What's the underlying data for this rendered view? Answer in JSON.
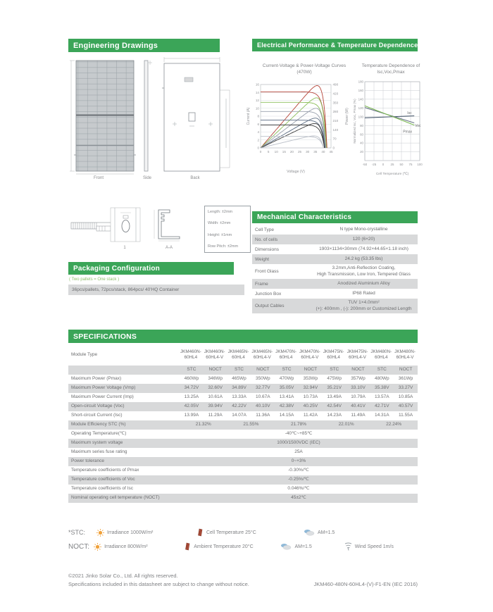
{
  "sections": {
    "engineering": {
      "title": "Engineering Drawings",
      "views": [
        "Front",
        "Side",
        "Back"
      ],
      "section_labels": [
        "1",
        "A-A"
      ],
      "tolerances": [
        "Length: ±2mm",
        "Width: ±2mm",
        "Height: ±1mm",
        "Row Pitch: ±2mm"
      ]
    },
    "electrical": {
      "title": "Electrical Performance & Temperature Dependence"
    },
    "packaging": {
      "title": "Packaging Configuration",
      "note": "( Two pallets = One stack )",
      "detail": "36pcs/pallets, 72pcs/stack, 864pcs/ 40'HQ Container"
    },
    "mechanical": {
      "title": "Mechanical Characteristics",
      "rows": [
        {
          "label": "Cell Type",
          "lines": [
            "N type Mono-crystalline"
          ],
          "shade": false
        },
        {
          "label": "No. of cells",
          "lines": [
            "120 (6×20)"
          ],
          "shade": true
        },
        {
          "label": "Dimensions",
          "lines": [
            "1903×1134×30mm (74.92×44.65×1.18 inch)"
          ],
          "shade": false
        },
        {
          "label": "Weight",
          "lines": [
            "24.2 kg (53.35 lbs)"
          ],
          "shade": true
        },
        {
          "label": "Front Glass",
          "lines": [
            "3.2mm,Anti-Reflection Coating,",
            "High Transmission, Low Iron, Tempered Glass"
          ],
          "shade": false
        },
        {
          "label": "Frame",
          "lines": [
            "Anodized Aluminium Alloy"
          ],
          "shade": true
        },
        {
          "label": "Junction Box",
          "lines": [
            "IP68 Rated"
          ],
          "shade": false
        },
        {
          "label": "Output Cables",
          "lines": [
            "TUV 1×4.0mm²",
            "(+): 400mm , (-): 200mm or Customized Length"
          ],
          "shade": true
        }
      ]
    },
    "specifications": {
      "title": "SPECIFICATIONS",
      "module_type_label": "Module Type",
      "modules": [
        [
          "JKM460N-60HL4",
          "JKM460N-60HL4-V"
        ],
        [
          "JKM465N-60HL4",
          "JKM465N-60HL4-V"
        ],
        [
          "JKM470N-60HL4",
          "JKM470N-60HL4-V"
        ],
        [
          "JKM475N-60HL4",
          "JKM475N-60HL4-V"
        ],
        [
          "JKM480N-60HL4",
          "JKM480N-60HL4-V"
        ]
      ],
      "subheaders": [
        "STC",
        "NOCT"
      ],
      "rows": [
        {
          "label": "Maximum Power (Pmax)",
          "type": "pair",
          "shade": false,
          "values": [
            "460Wp",
            "346Wp",
            "465Wp",
            "350Wp",
            "470Wp",
            "353Wp",
            "475Wp",
            "357Wp",
            "480Wp",
            "361Wp"
          ]
        },
        {
          "label": "Maximum Power Voltage (Vmp)",
          "type": "pair",
          "shade": true,
          "values": [
            "34.72V",
            "32.60V",
            "34.89V",
            "32.77V",
            "35.05V",
            "32.94V",
            "35.21V",
            "33.10V",
            "35.38V",
            "33.27V"
          ]
        },
        {
          "label": "Maximum Power Current (Imp)",
          "type": "pair",
          "shade": false,
          "values": [
            "13.25A",
            "10.61A",
            "13.33A",
            "10.67A",
            "13.41A",
            "10.73A",
            "13.49A",
            "10.79A",
            "13.57A",
            "10.85A"
          ]
        },
        {
          "label": "Open-circuit Voltage (Voc)",
          "type": "pair",
          "shade": true,
          "values": [
            "42.05V",
            "39.94V",
            "42.22V",
            "40.10V",
            "42.38V",
            "40.25V",
            "42.54V",
            "40.41V",
            "42.71V",
            "40.57V"
          ]
        },
        {
          "label": "Short-circuit Current (Isc)",
          "type": "pair",
          "shade": false,
          "values": [
            "13.99A",
            "11.29A",
            "14.07A",
            "11.36A",
            "14.15A",
            "11.42A",
            "14.23A",
            "11.49A",
            "14.31A",
            "11.55A"
          ]
        },
        {
          "label": "Module Efficiency STC (%)",
          "type": "percol",
          "shade": true,
          "values": [
            "21.32%",
            "21.55%",
            "21.78%",
            "22.01%",
            "22.24%"
          ]
        },
        {
          "label": "Operating Temperature(℃)",
          "type": "span",
          "shade": false,
          "value": "-40℃~+85℃"
        },
        {
          "label": "Maximum system voltage",
          "type": "span",
          "shade": true,
          "value": "1000/1500VDC (IEC)"
        },
        {
          "label": "Maximum series fuse rating",
          "type": "span",
          "shade": false,
          "value": "25A"
        },
        {
          "label": "Power tolerance",
          "type": "span",
          "shade": true,
          "value": "0~+3%"
        },
        {
          "label": "Temperature coefficients of Pmax",
          "type": "span",
          "shade": false,
          "value": "-0.30%/℃"
        },
        {
          "label": "Temperature coefficients of Voc",
          "type": "span",
          "shade": true,
          "value": "-0.25%/℃"
        },
        {
          "label": "Temperature coefficients of Isc",
          "type": "span",
          "shade": false,
          "value": "0.046%/℃"
        },
        {
          "label": "Nominal operating cell temperature  (NOCT)",
          "type": "span",
          "shade": true,
          "value": "45±2℃"
        }
      ]
    },
    "legend": {
      "rows": [
        {
          "tag": "*STC:",
          "items": [
            {
              "icon": "sun-icon",
              "text": "Irradiance 1000W/m²"
            },
            {
              "icon": "thermometer-icon",
              "text": "Cell Temperature 25°C"
            },
            {
              "icon": "cloud-icon",
              "text": "AM=1.5"
            }
          ]
        },
        {
          "tag": "NOCT:",
          "items": [
            {
              "icon": "sun-icon",
              "text": "Irradiance 800W/m²"
            },
            {
              "icon": "thermometer-icon",
              "text": "Ambient Temperature 20°C"
            },
            {
              "icon": "cloud-icon",
              "text": "AM=1.5"
            },
            {
              "icon": "wind-icon",
              "text": "Wind Speed 1m/s"
            }
          ]
        }
      ]
    },
    "footer": {
      "line1": "©2021 Jinko Solar Co., Ltd. All rights reserved.",
      "line2": "Specifications included in this datasheet are subject to change without notice.",
      "code": "JKM460-480N-60HL4-(V)-F1-EN (IEC 2016)"
    }
  },
  "colors": {
    "accent_green": "#3ba558",
    "stripe_gray": "#d8d9da"
  },
  "chart_data": [
    {
      "type": "line",
      "title": "Current-Voltage & Power-Voltage Curves (470W)",
      "xlabel": "Voltage (V)",
      "ylabel_left": "Current (A)",
      "ylabel_right": "Power (W)",
      "xlim": [
        0,
        45
      ],
      "xticks": [
        0,
        5,
        10,
        15,
        20,
        25,
        30,
        35,
        40,
        45
      ],
      "ylim_left": [
        0,
        16
      ],
      "yticks_left": [
        0,
        2,
        4,
        6,
        8,
        10,
        12,
        14,
        16
      ],
      "ylim_right": [
        0,
        490
      ],
      "yticks_right": [
        0,
        70,
        140,
        210,
        280,
        350,
        420,
        490
      ],
      "grid": "horizontal",
      "iv_curves": [
        {
          "isc": 14.15,
          "voc": 42.4,
          "color": "#b6453a"
        },
        {
          "isc": 11.5,
          "voc": 42.0,
          "color": "#8cbf5a"
        },
        {
          "isc": 9.2,
          "voc": 41.6,
          "color": "#9aa0ad"
        },
        {
          "isc": 7.0,
          "voc": 41.2,
          "color": "#5b6b82"
        },
        {
          "isc": 5.8,
          "voc": 40.8,
          "color": "#3a3a3a"
        },
        {
          "isc": 2.9,
          "voc": 40.2,
          "color": "#b9bec7"
        }
      ]
    },
    {
      "type": "line",
      "title": "Temperature Dependence of Isc,Voc,Pmax",
      "xlabel": "Cell Temperature (℃)",
      "ylabel": "Normalized Isc, Voc, Pmax (%)",
      "xlim": [
        -50,
        100
      ],
      "xticks": [
        -50,
        -25,
        0,
        25,
        50,
        75,
        100
      ],
      "ylim": [
        0,
        180
      ],
      "yticks": [
        20,
        40,
        60,
        80,
        100,
        120,
        140,
        160,
        180
      ],
      "grid": "both",
      "series": [
        {
          "name": "Isc",
          "color": "#46566b",
          "points": [
            [
              -50,
              97.5
            ],
            [
              85,
              102
            ]
          ]
        },
        {
          "name": "Voc",
          "color": "#6a7585",
          "points": [
            [
              -50,
              121
            ],
            [
              85,
              86
            ]
          ]
        },
        {
          "name": "Pmax",
          "color": "#7cb952",
          "points": [
            [
              -50,
              125
            ],
            [
              85,
              81
            ]
          ]
        }
      ]
    }
  ]
}
